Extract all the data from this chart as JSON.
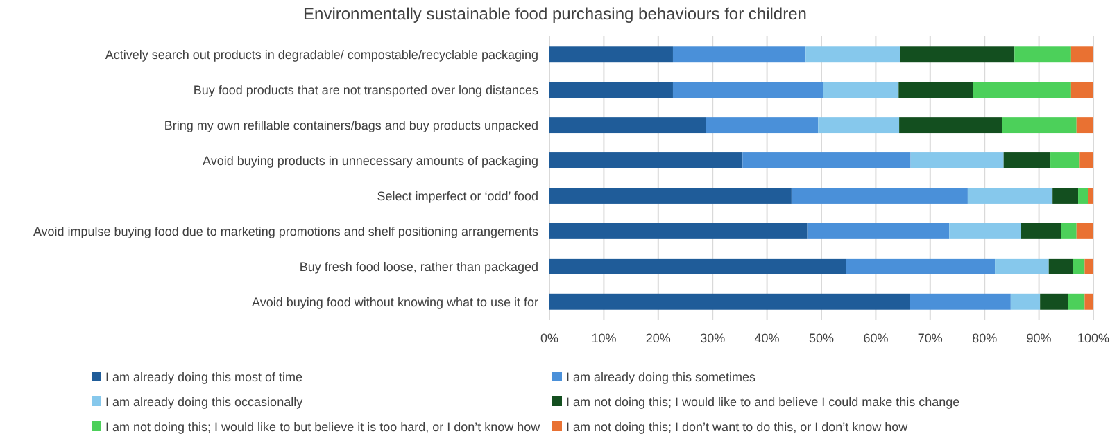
{
  "chart_data": {
    "type": "bar",
    "orientation": "horizontal",
    "stacked": true,
    "title": "Environmentally sustainable food purchasing behaviours for children",
    "categories": [
      "Actively search out products in degradable/ compostable/recyclable packaging",
      "Buy food products that are not transported over long distances",
      "Bring my own refillable containers/bags and buy products unpacked",
      "Avoid buying products in unnecessary amounts of packaging",
      "Select imperfect or ‘odd’ food",
      "Avoid impulse buying food due to marketing promotions and shelf positioning arrangements",
      "Buy fresh food loose, rather than packaged",
      "Avoid buying food without knowing what to use it for"
    ],
    "series": [
      {
        "name": "I am already doing this most of time",
        "color": "#1f5c99",
        "values": [
          22.7,
          22.7,
          28.8,
          35.5,
          44.5,
          47.4,
          54.5,
          66.2
        ]
      },
      {
        "name": "I am already doing this sometimes",
        "color": "#4a90d9",
        "values": [
          24.4,
          27.6,
          20.6,
          30.9,
          32.4,
          26.1,
          27.4,
          18.6
        ]
      },
      {
        "name": "I am already doing this occasionally",
        "color": "#86c8ec",
        "values": [
          17.4,
          13.9,
          14.9,
          17.1,
          15.6,
          13.2,
          9.9,
          5.4
        ]
      },
      {
        "name": "I am not doing this; I would like to and believe I could make this change",
        "color": "#134f1f",
        "values": [
          21.0,
          13.7,
          18.9,
          8.6,
          4.7,
          7.4,
          4.5,
          5.1
        ]
      },
      {
        "name": "I am not doing this; I would like to but believe it is too hard, or I don’t know how",
        "color": "#4cd05a",
        "values": [
          10.4,
          18.0,
          13.7,
          5.4,
          1.8,
          2.8,
          2.1,
          3.1
        ]
      },
      {
        "name": "I am not doing this; I don’t want to do this, or I don’t know how",
        "color": "#e97132",
        "values": [
          4.1,
          4.1,
          3.1,
          2.5,
          1.0,
          3.1,
          1.6,
          1.6
        ]
      }
    ],
    "xlim": [
      0,
      100
    ],
    "xticks": [
      {
        "value": 0,
        "label": "0%"
      },
      {
        "value": 10,
        "label": "10%"
      },
      {
        "value": 20,
        "label": "20%"
      },
      {
        "value": 30,
        "label": "30%"
      },
      {
        "value": 40,
        "label": "40%"
      },
      {
        "value": 50,
        "label": "50%"
      },
      {
        "value": 60,
        "label": "60%"
      },
      {
        "value": 70,
        "label": "70%"
      },
      {
        "value": 80,
        "label": "80%"
      },
      {
        "value": 90,
        "label": "90%"
      },
      {
        "value": 100,
        "label": "100%"
      }
    ],
    "grid": "x",
    "legend": "bottom"
  }
}
